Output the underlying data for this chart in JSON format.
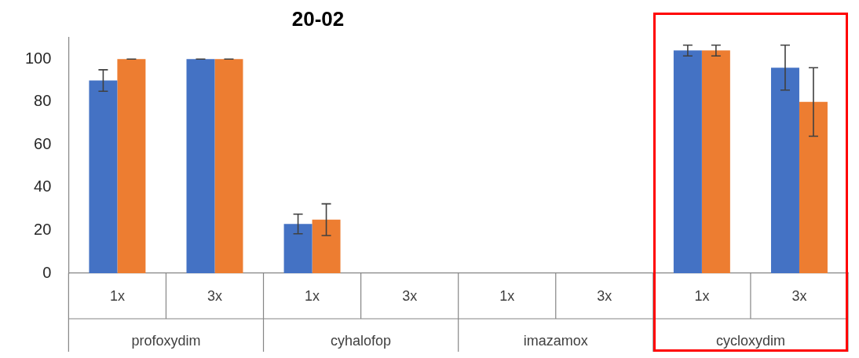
{
  "chart_data": {
    "type": "bar",
    "title": "20-02",
    "categories": [
      "1x",
      "3x",
      "1x",
      "3x",
      "1x",
      "3x",
      "1x",
      "3x"
    ],
    "annotations": [
      "profoxydim",
      "cyhalofop",
      "imazamox",
      "cycloxydim"
    ],
    "series": [
      {
        "color": "#4472c4",
        "values": [
          90,
          100,
          23,
          0,
          0,
          0,
          104,
          96
        ],
        "errors": [
          5,
          0,
          4.6,
          null,
          null,
          null,
          2.5,
          10.5
        ]
      },
      {
        "color": "#ed7d31",
        "values": [
          100,
          100,
          25,
          0,
          0,
          0,
          104,
          80
        ],
        "errors": [
          0,
          0,
          7.4,
          null,
          null,
          null,
          2.5,
          16
        ]
      }
    ],
    "ylim": [
      0,
      110
    ],
    "yticks": [
      0,
      20,
      40,
      60,
      80,
      100
    ],
    "grid": false,
    "legend": false
  }
}
